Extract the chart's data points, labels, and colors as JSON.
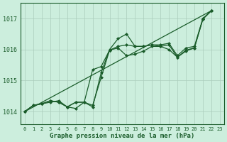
{
  "background_color": "#cceedd",
  "grid_color": "#aaccbb",
  "line_color": "#1a5c2a",
  "xlabel": "Graphe pression niveau de la mer (hPa)",
  "xlim": [
    -0.5,
    23.5
  ],
  "ylim": [
    1013.6,
    1017.5
  ],
  "yticks": [
    1014,
    1015,
    1016,
    1017
  ],
  "xticks": [
    0,
    1,
    2,
    3,
    4,
    5,
    6,
    7,
    8,
    9,
    10,
    11,
    12,
    13,
    14,
    15,
    16,
    17,
    18,
    19,
    20,
    21,
    22,
    23
  ],
  "series1_x": [
    0,
    1,
    2,
    3,
    4,
    5,
    6,
    7,
    8,
    9,
    10,
    11,
    12,
    13,
    14,
    15,
    16,
    17,
    18,
    19,
    20,
    21,
    22
  ],
  "series1_y": [
    1014.0,
    1014.2,
    1014.25,
    1014.3,
    1014.35,
    1014.15,
    1014.1,
    1014.3,
    1014.15,
    1015.25,
    1016.0,
    1016.35,
    1016.5,
    1016.1,
    1016.1,
    1016.15,
    1016.15,
    1016.2,
    1015.8,
    1016.05,
    1016.1,
    1017.0,
    1017.25
  ],
  "series2_x": [
    0,
    1,
    2,
    3,
    4,
    5,
    6,
    7,
    8,
    9,
    10,
    11,
    12,
    13,
    14,
    15,
    16,
    17,
    18,
    19,
    20,
    21,
    22
  ],
  "series2_y": [
    1014.0,
    1014.2,
    1014.25,
    1014.35,
    1014.3,
    1014.15,
    1014.3,
    1014.3,
    1014.2,
    1015.1,
    1015.98,
    1016.05,
    1015.8,
    1015.85,
    1015.95,
    1016.1,
    1016.1,
    1016.15,
    1015.75,
    1015.98,
    1016.05,
    1016.98,
    1017.25
  ],
  "series3_x": [
    0,
    1,
    2,
    3,
    4,
    5,
    6,
    7,
    8,
    9,
    10,
    11,
    12,
    13,
    14,
    15,
    16,
    17,
    18,
    19,
    20,
    21,
    22
  ],
  "series3_y": [
    1014.0,
    1014.2,
    1014.25,
    1014.35,
    1014.3,
    1014.15,
    1014.3,
    1014.3,
    1015.35,
    1015.45,
    1015.98,
    1016.1,
    1016.15,
    1016.1,
    1016.1,
    1016.15,
    1016.1,
    1016.0,
    1015.75,
    1015.95,
    1016.05,
    1016.98,
    1017.25
  ],
  "series4_x": [
    0,
    22
  ],
  "series4_y": [
    1014.0,
    1017.25
  ],
  "marker": "D",
  "markersize": 2.0,
  "linewidth": 0.9
}
